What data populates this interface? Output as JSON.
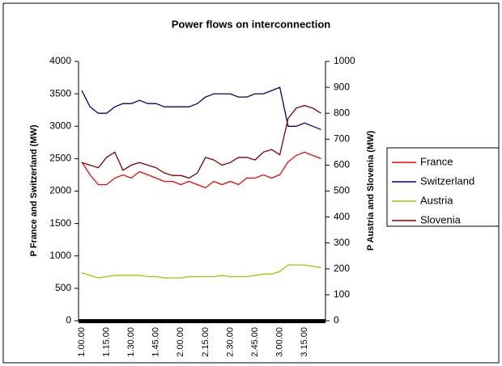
{
  "chart_data": {
    "type": "line",
    "title": "Power flows on interconnection",
    "y_label": "P France and Switzerland (MW)",
    "y2_label": "P Austria and Slovenia (MW)",
    "categories": [
      "1.00.00",
      null,
      null,
      "1.15.00",
      null,
      null,
      "1.30.00",
      null,
      null,
      "1.45.00",
      null,
      null,
      "2.00.00",
      null,
      null,
      "2.15.00",
      null,
      null,
      "2.30.00",
      null,
      null,
      "2.45.00",
      null,
      null,
      "3.00.00",
      null,
      null,
      "3.15.00",
      null,
      null
    ],
    "ylim": [
      0,
      4000
    ],
    "yticks": [
      0,
      500,
      1000,
      1500,
      2000,
      2500,
      3000,
      3500,
      4000
    ],
    "y2lim": [
      0,
      1000
    ],
    "y2ticks": [
      0,
      100,
      200,
      300,
      400,
      500,
      600,
      700,
      800,
      900,
      1000
    ],
    "grid": false,
    "legend": "right",
    "series": [
      {
        "name": "France",
        "color": "#ff0000",
        "values": [
          2450,
          2250,
          2100,
          2100,
          2200,
          2250,
          2200,
          2300,
          2250,
          2200,
          2150,
          2150,
          2100,
          2150,
          2100,
          2050,
          2150,
          2100,
          2150,
          2100,
          2200,
          2200,
          2250,
          2200,
          2250,
          2450,
          2550,
          2600,
          2550,
          2500
        ]
      },
      {
        "name": "Switzerland",
        "color": "#000080",
        "values": [
          3550,
          3300,
          3200,
          3200,
          3300,
          3350,
          3350,
          3400,
          3350,
          3350,
          3300,
          3300,
          3300,
          3300,
          3350,
          3450,
          3500,
          3500,
          3500,
          3450,
          3450,
          3500,
          3500,
          3550,
          3600,
          3000,
          3000,
          3050,
          3000,
          2950
        ]
      },
      {
        "name": "Austria",
        "color": "#99cc00",
        "axis": "y2",
        "values": [
          185,
          175,
          165,
          170,
          175,
          175,
          175,
          175,
          170,
          170,
          165,
          165,
          165,
          170,
          170,
          170,
          170,
          175,
          170,
          170,
          170,
          175,
          180,
          180,
          190,
          215,
          215,
          215,
          210,
          205
        ]
      },
      {
        "name": "Slovenia",
        "color": "#800000",
        "axis": "y2",
        "values": [
          610,
          600,
          590,
          630,
          650,
          580,
          600,
          610,
          600,
          590,
          570,
          560,
          560,
          550,
          570,
          630,
          620,
          600,
          610,
          630,
          630,
          620,
          650,
          660,
          640,
          780,
          820,
          830,
          820,
          800
        ]
      }
    ]
  }
}
